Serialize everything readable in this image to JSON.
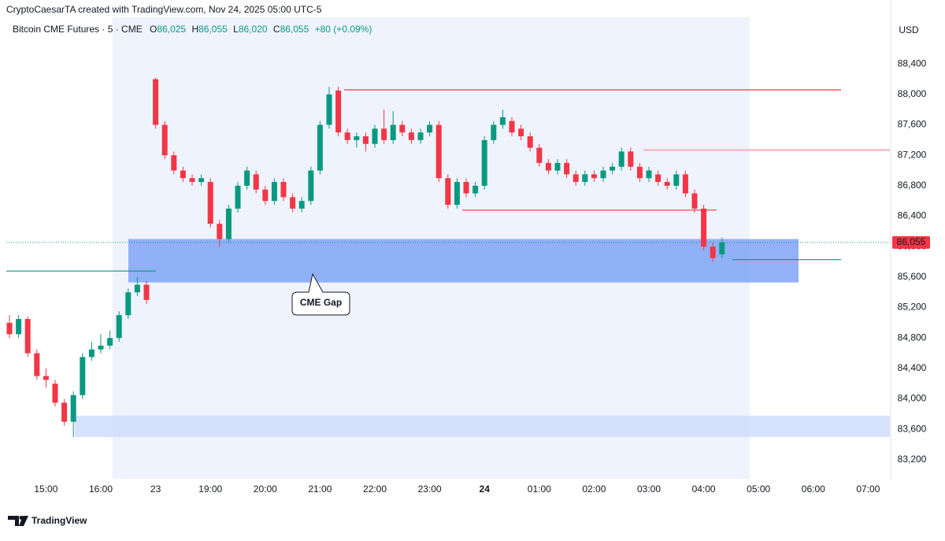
{
  "header": {
    "attribution": "CryptoCaesarTA created with TradingView.com, Nov 24, 2025 05:00 UTC-5",
    "symbol": "Bitcoin CME Futures · 5 · CME",
    "ohlc": [
      {
        "key": "O",
        "value": "86,025"
      },
      {
        "key": "H",
        "value": "86,055"
      },
      {
        "key": "L",
        "value": "86,020"
      },
      {
        "key": "C",
        "value": "86,055"
      }
    ],
    "change": "+80 (+0.09%)",
    "currency": "USD",
    "brand": "TradingView"
  },
  "chart_data": {
    "type": "candlestick",
    "x": [
      "14:20",
      "14:30",
      "14:40",
      "14:50",
      "15:00",
      "15:10",
      "15:20",
      "15:30",
      "15:40",
      "15:50",
      "16:00",
      "16:10",
      "16:20",
      "16:30",
      "16:40",
      "16:50",
      "18:00",
      "18:10",
      "18:20",
      "18:30",
      "18:40",
      "18:50",
      "19:00",
      "19:10",
      "19:20",
      "19:30",
      "19:40",
      "19:50",
      "20:00",
      "20:10",
      "20:20",
      "20:30",
      "20:40",
      "20:50",
      "21:00",
      "21:10",
      "21:20",
      "21:30",
      "21:40",
      "21:50",
      "22:00",
      "22:10",
      "22:20",
      "22:30",
      "22:40",
      "22:50",
      "23:00",
      "23:10",
      "23:20",
      "23:30",
      "23:40",
      "23:50",
      "00:00",
      "00:10",
      "00:20",
      "00:30",
      "00:40",
      "00:50",
      "01:00",
      "01:10",
      "01:20",
      "01:30",
      "01:40",
      "01:50",
      "02:00",
      "02:10",
      "02:20",
      "02:30",
      "02:40",
      "02:50",
      "03:00",
      "03:10",
      "03:20",
      "03:30",
      "03:40",
      "03:50",
      "04:00",
      "04:10",
      "04:20"
    ],
    "open": [
      85000,
      84850,
      85050,
      84600,
      84300,
      84200,
      83950,
      83700,
      84050,
      84550,
      84650,
      84700,
      84800,
      85100,
      85400,
      85500,
      88200,
      87600,
      87200,
      87000,
      86900,
      86850,
      86850,
      86300,
      86100,
      86500,
      86800,
      86950,
      86750,
      86600,
      86850,
      86650,
      86500,
      86600,
      87000,
      87600,
      88050,
      87500,
      87400,
      87450,
      87350,
      87550,
      87400,
      87600,
      87500,
      87400,
      87500,
      87600,
      86900,
      86550,
      86850,
      86700,
      86800,
      87400,
      87600,
      87650,
      87550,
      87450,
      87300,
      87100,
      87000,
      87100,
      86950,
      86850,
      86950,
      86900,
      87000,
      87050,
      87250,
      87050,
      86900,
      86950,
      86850,
      86800,
      86950,
      86700,
      86500,
      86000,
      85900
    ],
    "high": [
      85100,
      85100,
      85080,
      84650,
      84400,
      84250,
      84000,
      84100,
      84600,
      84750,
      84850,
      84900,
      85150,
      85450,
      85600,
      85550,
      88220,
      87650,
      87250,
      87050,
      86950,
      86950,
      86900,
      86350,
      86550,
      86850,
      87050,
      87000,
      86800,
      86900,
      86900,
      86700,
      86650,
      87050,
      87650,
      88100,
      88100,
      87550,
      87500,
      87500,
      87600,
      87800,
      87780,
      87650,
      87550,
      87550,
      87650,
      87650,
      86950,
      86900,
      86900,
      86850,
      87450,
      87650,
      87800,
      87700,
      87600,
      87500,
      87350,
      87150,
      87150,
      87150,
      87000,
      87000,
      87000,
      87050,
      87100,
      87300,
      87300,
      87100,
      87050,
      87000,
      86900,
      87000,
      87000,
      86750,
      86550,
      86050,
      86120
    ],
    "low": [
      84800,
      84800,
      84550,
      84250,
      84150,
      83900,
      83650,
      83500,
      84000,
      84500,
      84600,
      84650,
      84750,
      85050,
      85350,
      85250,
      87550,
      87150,
      86950,
      86850,
      86800,
      86800,
      86250,
      86000,
      86050,
      86450,
      86750,
      86700,
      86550,
      86550,
      86600,
      86450,
      86450,
      86550,
      86950,
      87550,
      87450,
      87350,
      87300,
      87250,
      87300,
      87350,
      87350,
      87450,
      87350,
      87350,
      87450,
      86850,
      86500,
      86500,
      86650,
      86650,
      86750,
      87350,
      87550,
      87450,
      87400,
      87250,
      87050,
      86950,
      86950,
      86900,
      86800,
      86800,
      86850,
      86850,
      86950,
      87000,
      87000,
      86850,
      86850,
      86800,
      86750,
      86750,
      86650,
      86450,
      85950,
      85800,
      85850
    ],
    "close": [
      84850,
      85050,
      84600,
      84300,
      84250,
      83950,
      83700,
      84050,
      84550,
      84650,
      84700,
      84800,
      85100,
      85400,
      85500,
      85300,
      87600,
      87200,
      87000,
      86900,
      86850,
      86900,
      86300,
      86100,
      86500,
      86800,
      87000,
      86750,
      86600,
      86850,
      86650,
      86500,
      86600,
      87000,
      87600,
      88000,
      87500,
      87400,
      87450,
      87350,
      87550,
      87400,
      87600,
      87500,
      87400,
      87500,
      87600,
      86900,
      86550,
      86850,
      86700,
      86800,
      87400,
      87600,
      87700,
      87500,
      87450,
      87300,
      87100,
      87000,
      87100,
      86950,
      86850,
      86950,
      86900,
      87000,
      87050,
      87250,
      87050,
      86900,
      87000,
      86850,
      86800,
      86950,
      86700,
      86500,
      86000,
      85850,
      86055
    ],
    "up_color": "#089981",
    "down_color": "#f23645",
    "ylim": [
      82930,
      88930
    ],
    "yticks": [
      {
        "value": 83200,
        "label": "83,200"
      },
      {
        "value": 83600,
        "label": "83,600"
      },
      {
        "value": 84000,
        "label": "84,000"
      },
      {
        "value": 84400,
        "label": "84,400"
      },
      {
        "value": 84800,
        "label": "84,800"
      },
      {
        "value": 85200,
        "label": "85,200"
      },
      {
        "value": 85600,
        "label": "85,600"
      },
      {
        "value": 86000,
        "label": "86,000"
      },
      {
        "value": 86400,
        "label": "86,400"
      },
      {
        "value": 86800,
        "label": "86,800"
      },
      {
        "value": 87200,
        "label": "87,200"
      },
      {
        "value": 87600,
        "label": "87,600"
      },
      {
        "value": 88000,
        "label": "88,000"
      },
      {
        "value": 88400,
        "label": "88,400"
      }
    ],
    "xticks": [
      {
        "value": "15:00",
        "label": "15:00"
      },
      {
        "value": "16:00",
        "label": "16:00"
      },
      {
        "value": "18:00",
        "label": "23"
      },
      {
        "value": "19:00",
        "label": "19:00"
      },
      {
        "value": "20:00",
        "label": "20:00"
      },
      {
        "value": "21:00",
        "label": "21:00"
      },
      {
        "value": "22:00",
        "label": "22:00"
      },
      {
        "value": "23:00",
        "label": "23:00"
      },
      {
        "value": "00:00",
        "label": "24"
      },
      {
        "value": "01:00",
        "label": "01:00"
      },
      {
        "value": "02:00",
        "label": "02:00"
      },
      {
        "value": "03:00",
        "label": "03:00"
      },
      {
        "value": "04:00",
        "label": "04:00"
      },
      {
        "value": "05:00",
        "label": "05:00"
      },
      {
        "value": "06:00",
        "label": "06:00"
      },
      {
        "value": "07:00",
        "label": "07:00"
      }
    ],
    "zones": [
      {
        "from": 86100,
        "to": 85530,
        "color": "#7fa3f7"
      },
      {
        "from": 83780,
        "to": 83500,
        "color": "#cfdcfb"
      }
    ],
    "levels": [
      {
        "value": 88060,
        "color": "#f23645"
      },
      {
        "value": 86480,
        "color": "#f23645"
      },
      {
        "value": 85830,
        "color": "#089981"
      },
      {
        "value": 85680,
        "color": "#089981"
      },
      {
        "value": 87270,
        "color": "#f7c5cb"
      }
    ],
    "annotation": "CME Gap",
    "last_price": {
      "value": 86055,
      "label": "86,055"
    }
  }
}
